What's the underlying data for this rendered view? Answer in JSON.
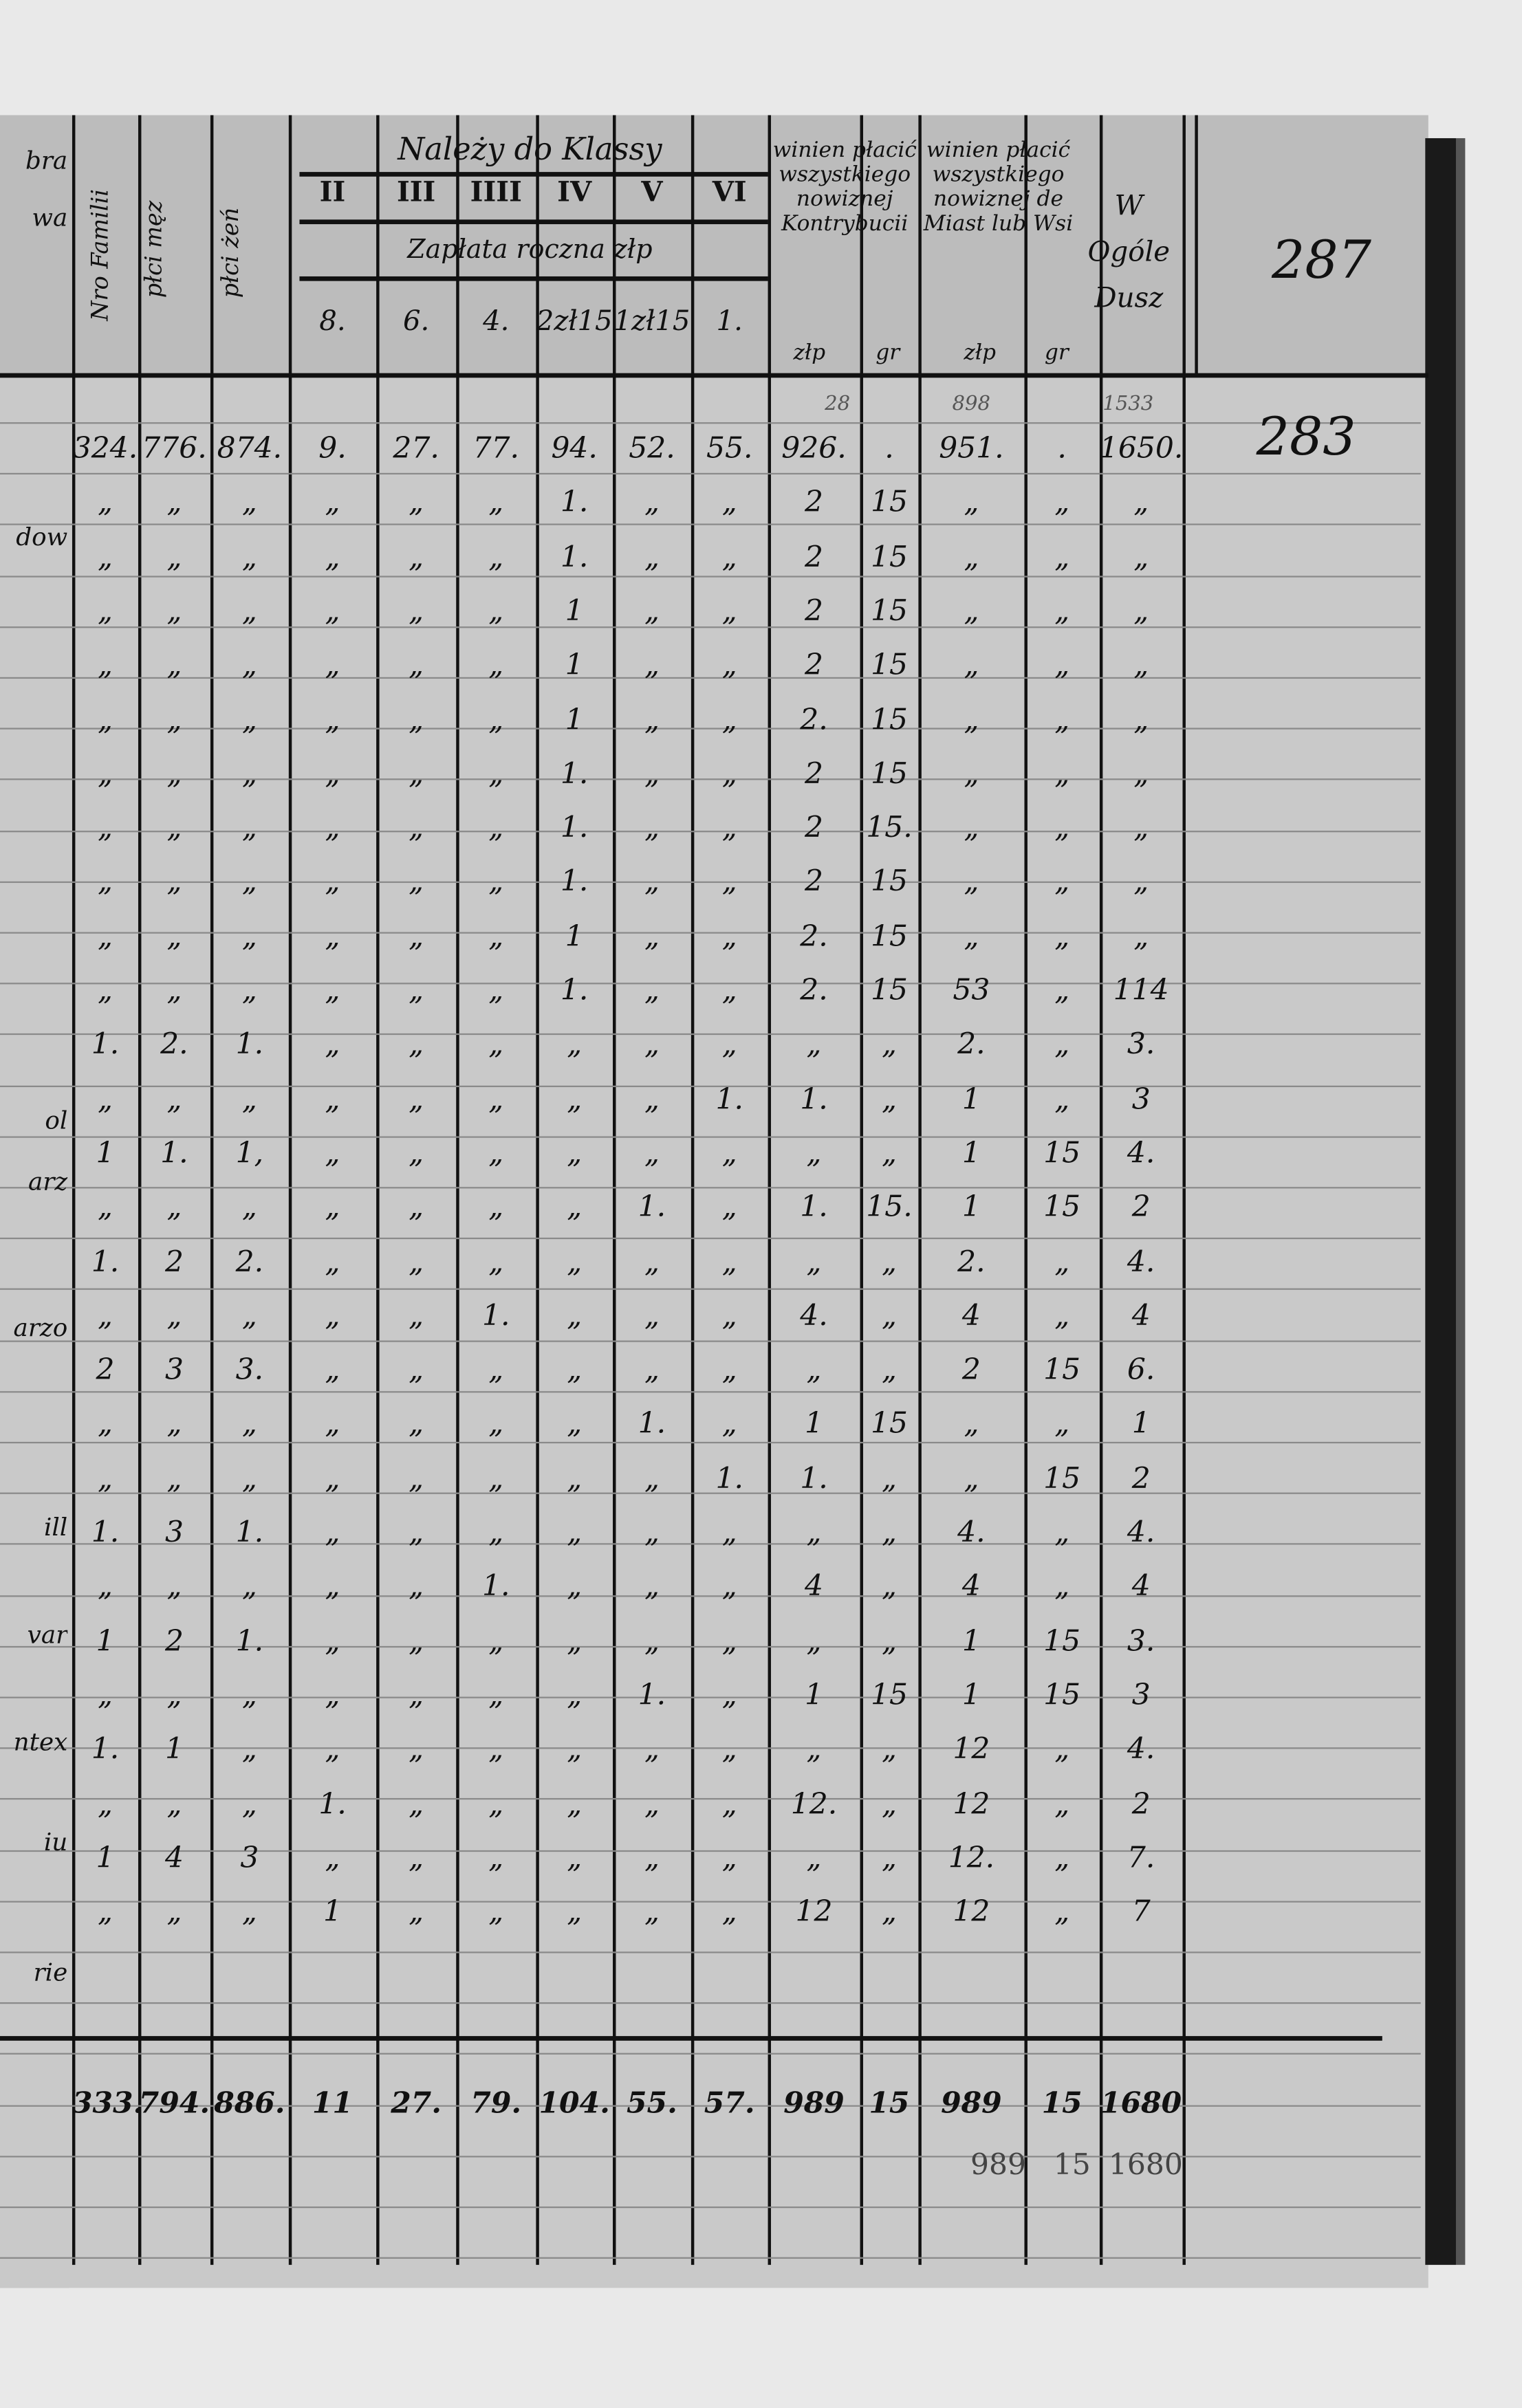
{
  "page_numbers": {
    "header": "287",
    "body": "283"
  },
  "header": {
    "col_family": "Nro Familii",
    "col_male": "płci męz",
    "col_female": "płci żeń",
    "class_title": "Należy do Klassy",
    "classes": [
      "II",
      "III",
      "IIII",
      "IV",
      "V",
      "VI"
    ],
    "annual_payment_label": "Zapłata roczna złp",
    "class_amounts": [
      "8.",
      "6.",
      "4.",
      "2zł15",
      "1zł15",
      "1."
    ],
    "owed_contribution": "winien płacić wszystkiego nowiznej Kontrybucii",
    "owed_town": "winien płacić wszystkiego nowiznej de Miast lub Wsi",
    "total_souls": "W Ogóle Dusz",
    "unit_zlp": "złp",
    "unit_gr": "gr"
  },
  "above_first_row": [
    "28",
    "898",
    "1533"
  ],
  "margin_fragments": [
    "bra",
    "wa",
    "dow",
    "ol",
    "arz",
    "arzo",
    "ill",
    "var",
    "ntex",
    "iu",
    "rie"
  ],
  "rows": [
    [
      "324.",
      "776.",
      "874.",
      "9.",
      "27.",
      "77.",
      "94.",
      "52.",
      "55.",
      "926.",
      ".",
      "951.",
      ".",
      "1650."
    ],
    [
      "„",
      "„",
      "„",
      "„",
      "„",
      "„",
      "1.",
      "„",
      "„",
      "2",
      "15",
      "„",
      "„",
      "„"
    ],
    [
      "„",
      "„",
      "„",
      "„",
      "„",
      "„",
      "1.",
      "„",
      "„",
      "2",
      "15",
      "„",
      "„",
      "„"
    ],
    [
      "„",
      "„",
      "„",
      "„",
      "„",
      "„",
      "1",
      "„",
      "„",
      "2",
      "15",
      "„",
      "„",
      "„"
    ],
    [
      "„",
      "„",
      "„",
      "„",
      "„",
      "„",
      "1",
      "„",
      "„",
      "2",
      "15",
      "„",
      "„",
      "„"
    ],
    [
      "„",
      "„",
      "„",
      "„",
      "„",
      "„",
      "1",
      "„",
      "„",
      "2.",
      "15",
      "„",
      "„",
      "„"
    ],
    [
      "„",
      "„",
      "„",
      "„",
      "„",
      "„",
      "1.",
      "„",
      "„",
      "2",
      "15",
      "„",
      "„",
      "„"
    ],
    [
      "„",
      "„",
      "„",
      "„",
      "„",
      "„",
      "1.",
      "„",
      "„",
      "2",
      "15.",
      "„",
      "„",
      "„"
    ],
    [
      "„",
      "„",
      "„",
      "„",
      "„",
      "„",
      "1.",
      "„",
      "„",
      "2",
      "15",
      "„",
      "„",
      "„"
    ],
    [
      "„",
      "„",
      "„",
      "„",
      "„",
      "„",
      "1",
      "„",
      "„",
      "2.",
      "15",
      "„",
      "„",
      "„"
    ],
    [
      "„",
      "„",
      "„",
      "„",
      "„",
      "„",
      "1.",
      "„",
      "„",
      "2.",
      "15",
      "53",
      "„",
      "114"
    ],
    [
      "1.",
      "2.",
      "1.",
      "„",
      "„",
      "„",
      "„",
      "„",
      "„",
      "„",
      "„",
      "2.",
      "„",
      "3."
    ],
    [
      "„",
      "„",
      "„",
      "„",
      "„",
      "„",
      "„",
      "„",
      "1.",
      "1.",
      "„",
      "1",
      "„",
      "3"
    ],
    [
      "1",
      "1.",
      "1,",
      "„",
      "„",
      "„",
      "„",
      "„",
      "„",
      "„",
      "„",
      "1",
      "15",
      "4."
    ],
    [
      "„",
      "„",
      "„",
      "„",
      "„",
      "„",
      "„",
      "1.",
      "„",
      "1.",
      "15.",
      "1",
      "15",
      "2"
    ],
    [
      "1.",
      "2",
      "2.",
      "„",
      "„",
      "„",
      "„",
      "„",
      "„",
      "„",
      "„",
      "2.",
      "„",
      "4."
    ],
    [
      "„",
      "„",
      "„",
      "„",
      "„",
      "1.",
      "„",
      "„",
      "„",
      "4.",
      "„",
      "4",
      "„",
      "4"
    ],
    [
      "2",
      "3",
      "3.",
      "„",
      "„",
      "„",
      "„",
      "„",
      "„",
      "„",
      "„",
      "2",
      "15",
      "6."
    ],
    [
      "„",
      "„",
      "„",
      "„",
      "„",
      "„",
      "„",
      "1.",
      "„",
      "1",
      "15",
      "„",
      "„",
      "1"
    ],
    [
      "„",
      "„",
      "„",
      "„",
      "„",
      "„",
      "„",
      "„",
      "1.",
      "1.",
      "„",
      "„",
      "15",
      "2"
    ],
    [
      "1.",
      "3",
      "1.",
      "„",
      "„",
      "„",
      "„",
      "„",
      "„",
      "„",
      "„",
      "4.",
      "„",
      "4."
    ],
    [
      "„",
      "„",
      "„",
      "„",
      "„",
      "1.",
      "„",
      "„",
      "„",
      "4",
      "„",
      "4",
      "„",
      "4"
    ],
    [
      "1",
      "2",
      "1.",
      "„",
      "„",
      "„",
      "„",
      "„",
      "„",
      "„",
      "„",
      "1",
      "15",
      "3."
    ],
    [
      "„",
      "„",
      "„",
      "„",
      "„",
      "„",
      "„",
      "1.",
      "„",
      "1",
      "15",
      "1",
      "15",
      "3"
    ],
    [
      "1.",
      "1",
      "„",
      "„",
      "„",
      "„",
      "„",
      "„",
      "„",
      "„",
      "„",
      "12",
      "„",
      "4."
    ],
    [
      "„",
      "„",
      "„",
      "1.",
      "„",
      "„",
      "„",
      "„",
      "„",
      "12.",
      "„",
      "12",
      "„",
      "2"
    ],
    [
      "1",
      "4",
      "3",
      "„",
      "„",
      "„",
      "„",
      "„",
      "„",
      "„",
      "„",
      "12.",
      "„",
      "7."
    ],
    [
      "„",
      "„",
      "„",
      "1",
      "„",
      "„",
      "„",
      "„",
      "„",
      "12",
      "„",
      "12",
      "„",
      "7"
    ]
  ],
  "totals": [
    "333.",
    "794.",
    "886.",
    "11",
    "27.",
    "79.",
    "104.",
    "55.",
    "57.",
    "989",
    "15",
    "989",
    "15",
    "1680"
  ],
  "totals_check": [
    "989",
    "15",
    "1680"
  ]
}
